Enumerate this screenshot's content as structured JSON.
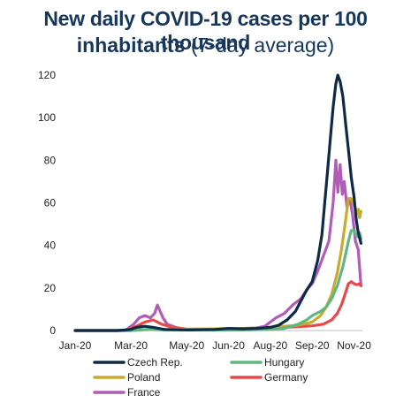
{
  "chart_data": {
    "type": "line",
    "title_line1": "New daily COVID-19 cases per 100 thousand",
    "title_line2_bold": "inhabitants",
    "title_line2_normal": "(7-day average)",
    "xlabel": "",
    "ylabel": "",
    "ylim": [
      0,
      120
    ],
    "yticks": [
      0,
      20,
      40,
      60,
      80,
      100,
      120
    ],
    "xlim": [
      0,
      10.3
    ],
    "xtick_labels": [
      "Jan-20",
      "Mar-20",
      "May-20",
      "Jun-20",
      "Aug-20",
      "Sep-20",
      "Nov-20"
    ],
    "xtick_positions": [
      0,
      2,
      4,
      5.5,
      7,
      8.5,
      10
    ],
    "grid": false,
    "legend_placement": "bottom",
    "series": [
      {
        "name": "Czech Rep.",
        "color": "#0e2a47",
        "points": [
          [
            0,
            0
          ],
          [
            1.5,
            0
          ],
          [
            2,
            0.5
          ],
          [
            2.2,
            1.5
          ],
          [
            2.5,
            2
          ],
          [
            2.8,
            1.5
          ],
          [
            3.2,
            0.5
          ],
          [
            4,
            0.3
          ],
          [
            5,
            0.5
          ],
          [
            5.5,
            1
          ],
          [
            6,
            0.8
          ],
          [
            6.5,
            1
          ],
          [
            7,
            1.5
          ],
          [
            7.3,
            2.5
          ],
          [
            7.6,
            5
          ],
          [
            7.9,
            9
          ],
          [
            8.1,
            14
          ],
          [
            8.3,
            19
          ],
          [
            8.5,
            23
          ],
          [
            8.7,
            33
          ],
          [
            8.85,
            45
          ],
          [
            8.95,
            60
          ],
          [
            9.05,
            75
          ],
          [
            9.15,
            90
          ],
          [
            9.25,
            105
          ],
          [
            9.35,
            116
          ],
          [
            9.42,
            120
          ],
          [
            9.5,
            117
          ],
          [
            9.6,
            110
          ],
          [
            9.7,
            97
          ],
          [
            9.8,
            85
          ],
          [
            9.9,
            72
          ],
          [
            10.0,
            63
          ],
          [
            10.08,
            52
          ],
          [
            10.15,
            46
          ],
          [
            10.25,
            41
          ]
        ]
      },
      {
        "name": "Hungary",
        "color": "#5fb782",
        "points": [
          [
            0,
            0
          ],
          [
            2,
            0
          ],
          [
            2.3,
            0.3
          ],
          [
            2.7,
            0.5
          ],
          [
            3.2,
            0.3
          ],
          [
            5,
            0.2
          ],
          [
            6,
            0.3
          ],
          [
            7,
            0.5
          ],
          [
            7.5,
            1
          ],
          [
            8,
            3
          ],
          [
            8.3,
            5
          ],
          [
            8.5,
            7
          ],
          [
            8.8,
            9
          ],
          [
            9.0,
            11
          ],
          [
            9.2,
            15
          ],
          [
            9.4,
            21
          ],
          [
            9.6,
            30
          ],
          [
            9.8,
            42
          ],
          [
            9.9,
            47
          ],
          [
            10.0,
            47
          ],
          [
            10.1,
            44
          ],
          [
            10.2,
            46
          ],
          [
            10.25,
            43
          ]
        ]
      },
      {
        "name": "Poland",
        "color": "#c8aa2d",
        "points": [
          [
            0,
            0
          ],
          [
            2,
            0
          ],
          [
            2.5,
            0.4
          ],
          [
            3,
            0.6
          ],
          [
            4,
            0.7
          ],
          [
            5,
            0.8
          ],
          [
            6,
            1
          ],
          [
            7,
            1.5
          ],
          [
            7.5,
            2
          ],
          [
            8,
            2.5
          ],
          [
            8.5,
            4
          ],
          [
            8.8,
            7
          ],
          [
            9.0,
            11
          ],
          [
            9.2,
            17
          ],
          [
            9.4,
            27
          ],
          [
            9.55,
            38
          ],
          [
            9.7,
            52
          ],
          [
            9.8,
            62
          ],
          [
            9.9,
            62
          ],
          [
            10.0,
            59
          ],
          [
            10.1,
            55
          ],
          [
            10.15,
            57
          ],
          [
            10.2,
            53
          ],
          [
            10.25,
            56
          ]
        ]
      },
      {
        "name": "Germany",
        "color": "#e8484a",
        "points": [
          [
            0,
            0
          ],
          [
            1.8,
            0
          ],
          [
            2.2,
            2
          ],
          [
            2.5,
            4
          ],
          [
            2.8,
            5
          ],
          [
            3.1,
            3
          ],
          [
            3.5,
            1.5
          ],
          [
            4,
            0.7
          ],
          [
            5,
            0.3
          ],
          [
            6,
            0.5
          ],
          [
            7,
            1.2
          ],
          [
            7.5,
            1.5
          ],
          [
            8,
            1.8
          ],
          [
            8.5,
            2.2
          ],
          [
            8.9,
            3
          ],
          [
            9.2,
            5
          ],
          [
            9.4,
            8
          ],
          [
            9.55,
            12
          ],
          [
            9.7,
            18
          ],
          [
            9.8,
            22
          ],
          [
            9.9,
            23
          ],
          [
            10.0,
            22
          ],
          [
            10.1,
            21.5
          ],
          [
            10.2,
            22
          ],
          [
            10.25,
            21
          ]
        ]
      },
      {
        "name": "France",
        "color": "#b25cb8",
        "points": [
          [
            0,
            0
          ],
          [
            1.8,
            0
          ],
          [
            2.1,
            3
          ],
          [
            2.3,
            6
          ],
          [
            2.5,
            7
          ],
          [
            2.7,
            6
          ],
          [
            2.85,
            8
          ],
          [
            2.95,
            12
          ],
          [
            3.05,
            9
          ],
          [
            3.15,
            6
          ],
          [
            3.3,
            3
          ],
          [
            3.6,
            1.5
          ],
          [
            4,
            0.5
          ],
          [
            5,
            0.3
          ],
          [
            6,
            0.8
          ],
          [
            6.5,
            1.2
          ],
          [
            6.8,
            2
          ],
          [
            7.0,
            4
          ],
          [
            7.2,
            6
          ],
          [
            7.5,
            8
          ],
          [
            7.8,
            12
          ],
          [
            8.1,
            15
          ],
          [
            8.3,
            19
          ],
          [
            8.5,
            22
          ],
          [
            8.7,
            28
          ],
          [
            8.9,
            35
          ],
          [
            9.1,
            42
          ],
          [
            9.25,
            60
          ],
          [
            9.35,
            80
          ],
          [
            9.42,
            65
          ],
          [
            9.5,
            78
          ],
          [
            9.58,
            64
          ],
          [
            9.65,
            70
          ],
          [
            9.75,
            58
          ],
          [
            9.85,
            62
          ],
          [
            9.95,
            54
          ],
          [
            10.05,
            42
          ],
          [
            10.15,
            38
          ],
          [
            10.25,
            21
          ]
        ]
      }
    ]
  }
}
